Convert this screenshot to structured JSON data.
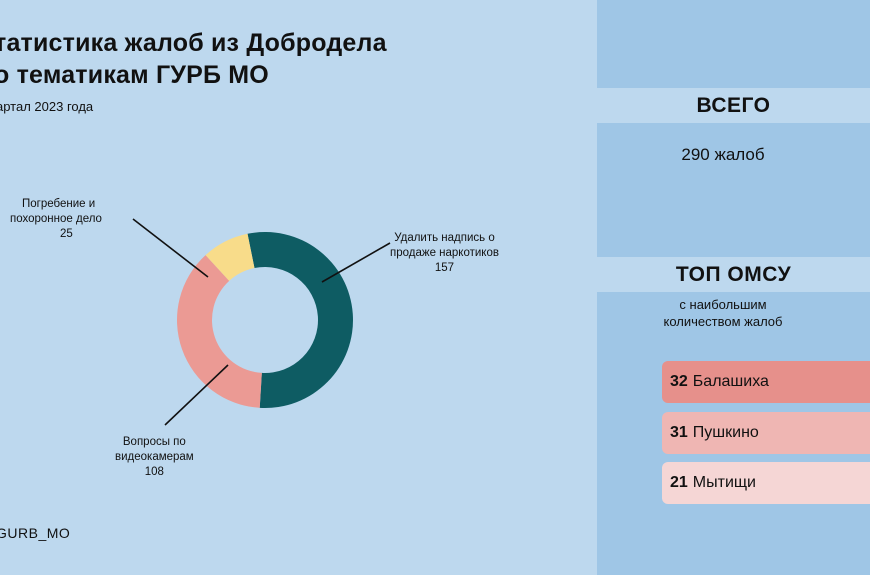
{
  "header": {
    "title_line1": "татистика жалоб из Добродела",
    "title_line2": "о тематикам ГУРБ МО",
    "subtitle": "артал 2023 года",
    "footer": "GURB_MO"
  },
  "chart_data": {
    "type": "pie",
    "donut": true,
    "slices": [
      {
        "label_lines": [
          "Удалить надпись о",
          "продаже наркотиков"
        ],
        "value": 157,
        "color": "#0e5c63"
      },
      {
        "label_lines": [
          "Вопросы по",
          "видеокамерам"
        ],
        "value": 108,
        "color": "#eb9a94"
      },
      {
        "label_lines": [
          "Погребение и",
          "похоронное дело"
        ],
        "value": 25,
        "color": "#f8dc8a"
      }
    ]
  },
  "panel": {
    "total_heading": "ВСЕГО",
    "total_value": "290 жалоб",
    "top_heading": "ТОП ОМСУ",
    "top_sub_line1": "с наибольшим",
    "top_sub_line2": "количеством жалоб",
    "omsu": [
      {
        "count": "32",
        "name": "Балашиха",
        "color": "#e6908b"
      },
      {
        "count": "31",
        "name": "Пушкино",
        "color": "#efb6b3"
      },
      {
        "count": "21",
        "name": "Мытищи",
        "color": "#f5d6d5"
      }
    ]
  }
}
